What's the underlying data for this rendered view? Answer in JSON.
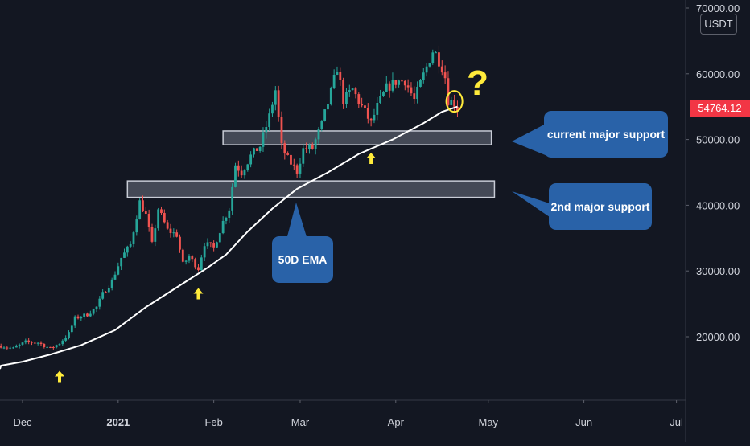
{
  "chart_data": {
    "type": "candlestick",
    "symbol_unit": "USDT",
    "last_price": "54764.12",
    "ylim": [
      11000,
      70000
    ],
    "y_ticks": [
      {
        "value": 20000,
        "label": "20000.00"
      },
      {
        "value": 30000,
        "label": "30000.00"
      },
      {
        "value": 40000,
        "label": "40000.00"
      },
      {
        "value": 50000,
        "label": "50000.00"
      },
      {
        "value": 60000,
        "label": "60000.00"
      },
      {
        "value": 70000,
        "label": "70000.00"
      }
    ],
    "x_ticks": [
      {
        "date": "2020-12-01",
        "label": "Dec",
        "bold": false
      },
      {
        "date": "2021-01-01",
        "label": "2021",
        "bold": true
      },
      {
        "date": "2021-02-01",
        "label": "Feb",
        "bold": false
      },
      {
        "date": "2021-03-01",
        "label": "Mar",
        "bold": false
      },
      {
        "date": "2021-04-01",
        "label": "Apr",
        "bold": false
      },
      {
        "date": "2021-05-01",
        "label": "May",
        "bold": false
      },
      {
        "date": "2021-06-01",
        "label": "Jun",
        "bold": false
      },
      {
        "date": "2021-07-01",
        "label": "Jul",
        "bold": false
      }
    ],
    "price_path": [
      [
        "2020-11-24",
        18600
      ],
      [
        "2020-11-28",
        18200
      ],
      [
        "2020-12-02",
        19200
      ],
      [
        "2020-12-06",
        19100
      ],
      [
        "2020-12-10",
        18200
      ],
      [
        "2020-12-13",
        19000
      ],
      [
        "2020-12-16",
        20500
      ],
      [
        "2020-12-18",
        22800
      ],
      [
        "2020-12-22",
        23400
      ],
      [
        "2020-12-25",
        24500
      ],
      [
        "2020-12-27",
        26500
      ],
      [
        "2020-12-30",
        28500
      ],
      [
        "2021-01-02",
        32000
      ],
      [
        "2021-01-05",
        34000
      ],
      [
        "2021-01-08",
        40500
      ],
      [
        "2021-01-10",
        38500
      ],
      [
        "2021-01-12",
        34000
      ],
      [
        "2021-01-14",
        39500
      ],
      [
        "2021-01-17",
        36200
      ],
      [
        "2021-01-20",
        35500
      ],
      [
        "2021-01-22",
        31000
      ],
      [
        "2021-01-24",
        32200
      ],
      [
        "2021-01-27",
        30400
      ],
      [
        "2021-01-29",
        34200
      ],
      [
        "2021-02-01",
        33500
      ],
      [
        "2021-02-04",
        37500
      ],
      [
        "2021-02-06",
        39500
      ],
      [
        "2021-02-08",
        46200
      ],
      [
        "2021-02-10",
        45000
      ],
      [
        "2021-02-13",
        47500
      ],
      [
        "2021-02-16",
        49000
      ],
      [
        "2021-02-19",
        53500
      ],
      [
        "2021-02-21",
        57500
      ],
      [
        "2021-02-23",
        48900
      ],
      [
        "2021-02-25",
        47000
      ],
      [
        "2021-02-28",
        45200
      ],
      [
        "2021-03-02",
        48500
      ],
      [
        "2021-03-05",
        48700
      ],
      [
        "2021-03-08",
        52300
      ],
      [
        "2021-03-11",
        57200
      ],
      [
        "2021-03-13",
        61000
      ],
      [
        "2021-03-15",
        56000
      ],
      [
        "2021-03-18",
        57600
      ],
      [
        "2021-03-22",
        54100
      ],
      [
        "2021-03-24",
        52500
      ],
      [
        "2021-03-26",
        55000
      ],
      [
        "2021-03-29",
        57800
      ],
      [
        "2021-04-01",
        58800
      ],
      [
        "2021-04-04",
        59000
      ],
      [
        "2021-04-07",
        56000
      ],
      [
        "2021-04-10",
        59800
      ],
      [
        "2021-04-13",
        63500
      ],
      [
        "2021-04-14",
        63000
      ],
      [
        "2021-04-16",
        61000
      ],
      [
        "2021-04-17",
        59500
      ],
      [
        "2021-04-18",
        56000
      ],
      [
        "2021-04-20",
        55500
      ],
      [
        "2021-04-21",
        54764
      ]
    ],
    "ema_50d": [
      [
        "2020-11-24",
        15600
      ],
      [
        "2020-12-01",
        16200
      ],
      [
        "2020-12-10",
        17300
      ],
      [
        "2020-12-20",
        18700
      ],
      [
        "2020-12-31",
        21000
      ],
      [
        "2021-01-10",
        24500
      ],
      [
        "2021-01-20",
        27500
      ],
      [
        "2021-01-30",
        30500
      ],
      [
        "2021-02-05",
        32500
      ],
      [
        "2021-02-12",
        36000
      ],
      [
        "2021-02-20",
        39500
      ],
      [
        "2021-02-28",
        42500
      ],
      [
        "2021-03-10",
        45000
      ],
      [
        "2021-03-20",
        47800
      ],
      [
        "2021-03-31",
        50000
      ],
      [
        "2021-04-10",
        52500
      ],
      [
        "2021-04-16",
        54200
      ],
      [
        "2021-04-21",
        55000
      ]
    ],
    "support_zones": [
      {
        "name": "current major support",
        "low": 49200,
        "high": 51300,
        "start": "2021-02-04",
        "end": "2021-05-02"
      },
      {
        "name": "2nd major support",
        "low": 41200,
        "high": 43700,
        "start": "2021-01-04",
        "end": "2021-05-03"
      }
    ],
    "annotations": {
      "callouts": [
        {
          "text": "current major support",
          "color": "#2962a8"
        },
        {
          "text": "2nd major support",
          "color": "#2962a8"
        },
        {
          "text": "50D EMA",
          "color": "#2962a8"
        }
      ],
      "question_mark": "?",
      "highlight_color": "#ffeb3b",
      "arrows": [
        {
          "date": "2020-12-13",
          "value": 14800
        },
        {
          "date": "2021-01-27",
          "value": 27400
        },
        {
          "date": "2021-03-24",
          "value": 48000
        }
      ],
      "circle": {
        "date": "2021-04-20",
        "value": 55800
      }
    },
    "colors": {
      "background": "#131722",
      "up": "#26a69a",
      "down": "#ef5350",
      "ema": "#ffffff",
      "axis_text": "#d1d4dc"
    }
  }
}
